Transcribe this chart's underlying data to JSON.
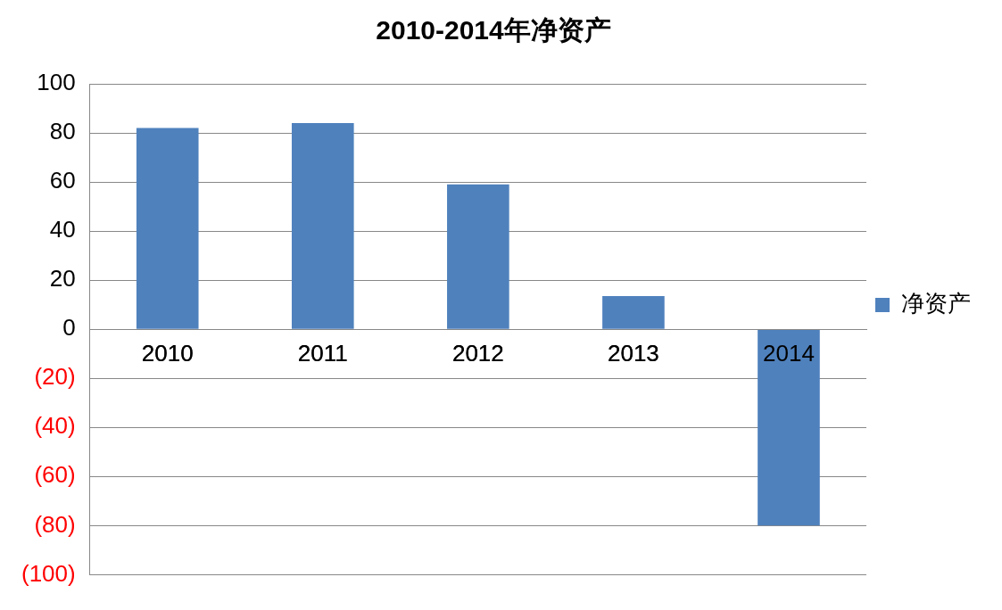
{
  "chart_data": {
    "type": "bar",
    "title": "2010-2014年净资产",
    "categories": [
      "2010",
      "2011",
      "2012",
      "2013",
      "2014"
    ],
    "series": [
      {
        "name": "净资产",
        "color": "#4f81bd",
        "values": [
          82,
          84,
          59,
          13.5,
          -80
        ]
      }
    ],
    "ylim": [
      -100,
      100
    ],
    "yticks": [
      {
        "value": -100,
        "label": "(100)"
      },
      {
        "value": -80,
        "label": "(80)"
      },
      {
        "value": -60,
        "label": "(60)"
      },
      {
        "value": -40,
        "label": "(40)"
      },
      {
        "value": -20,
        "label": "(20)"
      },
      0,
      20,
      40,
      60,
      80,
      100
    ],
    "grid": "y",
    "legend": "right"
  }
}
